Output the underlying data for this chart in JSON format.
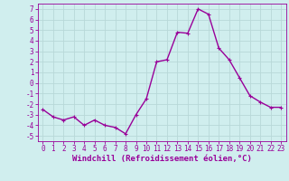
{
  "x": [
    0,
    1,
    2,
    3,
    4,
    5,
    6,
    7,
    8,
    9,
    10,
    11,
    12,
    13,
    14,
    15,
    16,
    17,
    18,
    19,
    20,
    21,
    22,
    23
  ],
  "y": [
    -2.5,
    -3.2,
    -3.5,
    -3.2,
    -4.0,
    -3.5,
    -4.0,
    -4.2,
    -4.8,
    -3.0,
    -1.5,
    2.0,
    2.2,
    4.8,
    4.7,
    7.0,
    6.5,
    3.3,
    2.2,
    0.5,
    -1.2,
    -1.8,
    -2.3,
    -2.3
  ],
  "line_color": "#990099",
  "marker": "+",
  "bg_color": "#d0eeee",
  "grid_color": "#b8d8d8",
  "xlabel": "Windchill (Refroidissement éolien,°C)",
  "ylim": [
    -5.5,
    7.5
  ],
  "xlim": [
    -0.5,
    23.5
  ],
  "xtick_labels": [
    "0",
    "1",
    "2",
    "3",
    "4",
    "5",
    "6",
    "7",
    "8",
    "9",
    "10",
    "11",
    "12",
    "13",
    "14",
    "15",
    "16",
    "17",
    "18",
    "19",
    "20",
    "21",
    "22",
    "23"
  ],
  "ytick_vals": [
    -5,
    -4,
    -3,
    -2,
    -1,
    0,
    1,
    2,
    3,
    4,
    5,
    6,
    7
  ],
  "xlabel_fontsize": 6.5,
  "tick_fontsize": 5.5,
  "line_width": 1.0,
  "marker_size": 3.5,
  "marker_ew": 0.8
}
